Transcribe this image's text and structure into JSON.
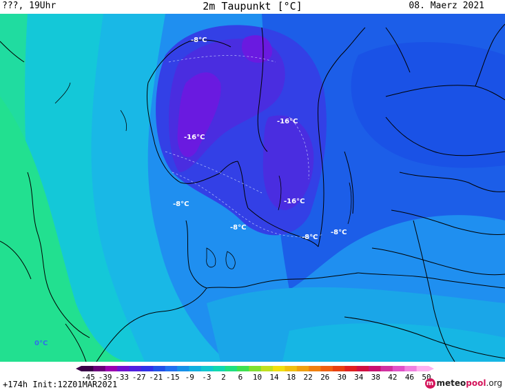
{
  "header": {
    "left": "???, 19Uhr",
    "title": "2m Taupunkt [°C]",
    "date": "08. Maerz 2021"
  },
  "map_labels": [
    {
      "text": "-8°C"
    },
    {
      "text": "-16°C"
    },
    {
      "text": "-16°C"
    },
    {
      "text": "-8°C"
    },
    {
      "text": "-8°C"
    },
    {
      "text": "-16°C"
    },
    {
      "text": "-8°C"
    },
    {
      "text": "-8°C"
    },
    {
      "text": "0°C"
    }
  ],
  "colorbar": {
    "ticks": [
      "-45",
      "-39",
      "-33",
      "-27",
      "-21",
      "-15",
      "-9",
      "-3",
      "2",
      "6",
      "10",
      "14",
      "18",
      "22",
      "26",
      "30",
      "34",
      "38",
      "42",
      "46",
      "50"
    ],
    "colors": [
      "#3a0048",
      "#6a007a",
      "#9a00b0",
      "#7010d0",
      "#5020e0",
      "#3030e8",
      "#2050e8",
      "#2070f0",
      "#1590e8",
      "#10b0e0",
      "#10c8d0",
      "#10d8b0",
      "#20e080",
      "#40e050",
      "#80e030",
      "#c0e020",
      "#f0e010",
      "#f0c010",
      "#f0a010",
      "#f08010",
      "#f06010",
      "#e84010",
      "#e02020",
      "#d01040",
      "#c81070",
      "#d030a0",
      "#e050c8",
      "#f080e0",
      "#ffb0f0"
    ]
  },
  "footer": {
    "init": "+174h Init:12Z01MAR2021",
    "brand_a": "meteo",
    "brand_b": "pool",
    "brand_c": ".org",
    "logo_letter": "m"
  },
  "colors": {
    "sea_green": "#20d890",
    "deep_cold": "#6a1ae0"
  }
}
